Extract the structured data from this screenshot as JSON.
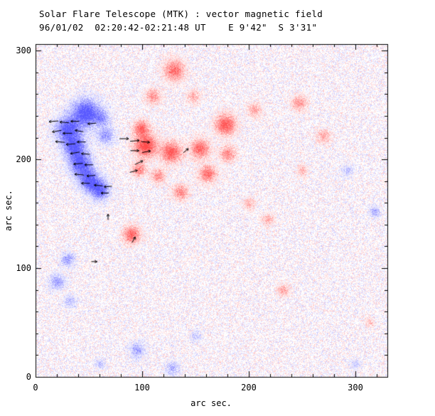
{
  "chart_data": {
    "type": "heatmap",
    "title": "Solar Flare Telescope (MTK) : vector magnetic field",
    "subtitle": "96/01/02  02:20:42-02:21:48 UT    E 9'42\"  S 3'31\"",
    "xlabel": "arc sec.",
    "ylabel": "arc sec.",
    "xlim": [
      0,
      330
    ],
    "ylim": [
      0,
      306
    ],
    "xticks": [
      0,
      100,
      200,
      300
    ],
    "yticks": [
      0,
      100,
      200,
      300
    ],
    "minor_tick_step": 20,
    "colors": {
      "positive": "#ff4c4c",
      "negative": "#5a5aff",
      "frame": "#000000",
      "vector": "#000000",
      "background": "#ffffff"
    },
    "noise": {
      "density": 0.55,
      "amplitude": 0.3
    },
    "blobs_format": [
      "x_arcsec",
      "y_arcsec",
      "radius_arcsec",
      "intensity",
      "polarity"
    ],
    "blobs": [
      [
        47,
        243,
        16,
        1.1,
        -1
      ],
      [
        30,
        228,
        14,
        1.0,
        -1
      ],
      [
        36,
        212,
        13,
        1.0,
        -1
      ],
      [
        42,
        196,
        13,
        1.0,
        -1
      ],
      [
        50,
        181,
        12,
        1.0,
        -1
      ],
      [
        60,
        172,
        11,
        0.95,
        -1
      ],
      [
        66,
        222,
        10,
        0.6,
        -1
      ],
      [
        62,
        238,
        9,
        0.5,
        -1
      ],
      [
        30,
        108,
        8,
        0.55,
        -1
      ],
      [
        20,
        88,
        9,
        0.55,
        -1
      ],
      [
        32,
        70,
        7,
        0.4,
        -1
      ],
      [
        95,
        25,
        9,
        0.5,
        -1
      ],
      [
        128,
        8,
        8,
        0.45,
        -1
      ],
      [
        60,
        12,
        6,
        0.35,
        -1
      ],
      [
        150,
        38,
        6,
        0.3,
        -1
      ],
      [
        292,
        190,
        7,
        0.35,
        -1
      ],
      [
        318,
        152,
        6,
        0.5,
        -1
      ],
      [
        300,
        12,
        6,
        0.3,
        -1
      ],
      [
        130,
        282,
        12,
        0.8,
        1
      ],
      [
        110,
        258,
        9,
        0.55,
        1
      ],
      [
        148,
        258,
        8,
        0.45,
        1
      ],
      [
        103,
        213,
        13,
        1.1,
        1
      ],
      [
        99,
        229,
        9,
        0.8,
        1
      ],
      [
        127,
        207,
        12,
        0.95,
        1
      ],
      [
        154,
        210,
        11,
        0.85,
        1
      ],
      [
        178,
        232,
        12,
        0.95,
        1
      ],
      [
        161,
        187,
        10,
        0.8,
        1
      ],
      [
        136,
        170,
        9,
        0.65,
        1
      ],
      [
        90,
        131,
        10,
        0.85,
        1
      ],
      [
        97,
        191,
        8,
        0.7,
        1
      ],
      [
        115,
        185,
        8,
        0.6,
        1
      ],
      [
        180,
        205,
        9,
        0.65,
        1
      ],
      [
        205,
        246,
        8,
        0.5,
        1
      ],
      [
        247,
        252,
        9,
        0.55,
        1
      ],
      [
        270,
        222,
        8,
        0.45,
        1
      ],
      [
        218,
        145,
        7,
        0.45,
        1
      ],
      [
        232,
        80,
        7,
        0.5,
        1
      ],
      [
        313,
        50,
        5,
        0.4,
        1
      ],
      [
        200,
        160,
        7,
        0.4,
        1
      ],
      [
        250,
        190,
        7,
        0.35,
        1
      ]
    ],
    "vectors_format": [
      "x_arcsec",
      "y_arcsec",
      "angle_deg",
      "length_px"
    ],
    "vectors": [
      [
        17,
        235,
        185,
        13
      ],
      [
        27,
        234,
        175,
        13
      ],
      [
        37,
        235,
        180,
        12
      ],
      [
        20,
        226,
        190,
        13
      ],
      [
        30,
        224,
        180,
        13
      ],
      [
        41,
        226,
        170,
        12
      ],
      [
        53,
        233,
        185,
        12
      ],
      [
        23,
        216,
        175,
        13
      ],
      [
        33,
        214,
        185,
        13
      ],
      [
        43,
        216,
        180,
        12
      ],
      [
        37,
        206,
        190,
        13
      ],
      [
        47,
        205,
        175,
        12
      ],
      [
        40,
        196,
        185,
        13
      ],
      [
        50,
        195,
        180,
        12
      ],
      [
        41,
        186,
        175,
        13
      ],
      [
        52,
        185,
        185,
        12
      ],
      [
        47,
        178,
        180,
        12
      ],
      [
        59,
        176,
        175,
        12
      ],
      [
        68,
        175,
        185,
        11
      ],
      [
        65,
        169,
        180,
        11
      ],
      [
        83,
        219,
        0,
        13
      ],
      [
        93,
        217,
        5,
        13
      ],
      [
        103,
        216,
        -5,
        12
      ],
      [
        93,
        208,
        0,
        12
      ],
      [
        104,
        207,
        10,
        12
      ],
      [
        97,
        197,
        25,
        12
      ],
      [
        92,
        189,
        15,
        11
      ],
      [
        141,
        208,
        40,
        9
      ],
      [
        68,
        147,
        90,
        8
      ],
      [
        55,
        106,
        0,
        8
      ],
      [
        92,
        126,
        60,
        9
      ]
    ]
  }
}
